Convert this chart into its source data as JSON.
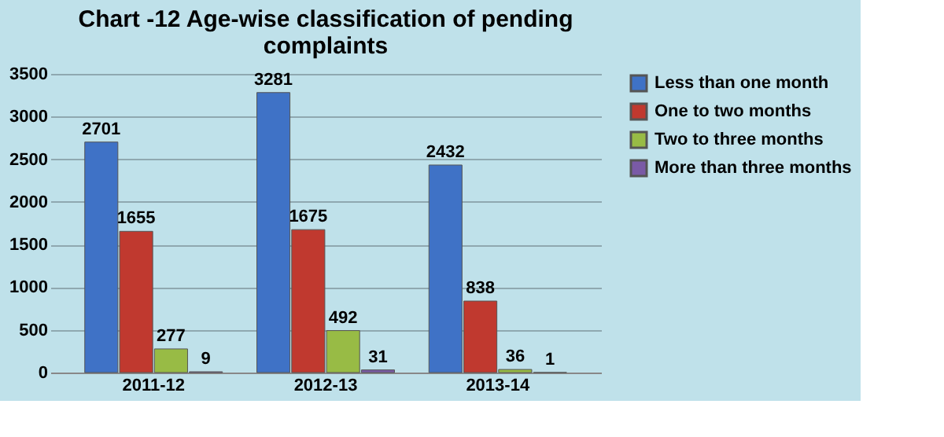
{
  "chart_data": {
    "type": "bar",
    "title": "Chart -12 Age-wise classification of pending complaints",
    "categories": [
      "2011-12",
      "2012-13",
      "2013-14"
    ],
    "series": [
      {
        "name": "Less than one month",
        "color": "#3f72c6",
        "values": [
          2701,
          3281,
          2432
        ]
      },
      {
        "name": "One to two months",
        "color": "#c0392f",
        "values": [
          1655,
          1675,
          838
        ]
      },
      {
        "name": "Two to three months",
        "color": "#98bb45",
        "values": [
          277,
          492,
          36
        ]
      },
      {
        "name": "More than three months",
        "color": "#7a5aa6",
        "values": [
          9,
          31,
          1
        ]
      }
    ],
    "ylim": [
      0,
      3500
    ],
    "yticks": [
      0,
      500,
      1000,
      1500,
      2000,
      2500,
      3000,
      3500
    ],
    "grid": "y",
    "legend": "right",
    "data_labels": true
  }
}
